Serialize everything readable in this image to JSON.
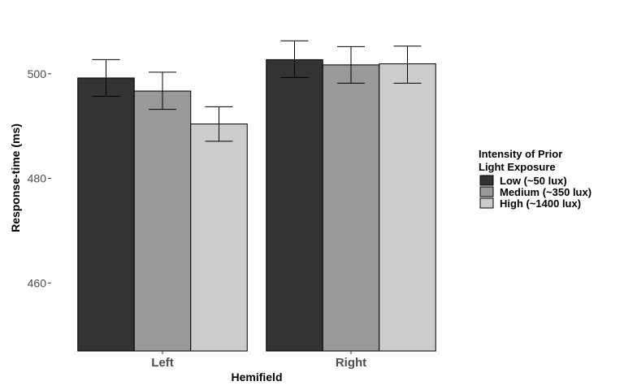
{
  "chart_data": {
    "type": "bar",
    "xlabel": "Hemifield",
    "ylabel": "Response-time (ms)",
    "categories": [
      "Left",
      "Right"
    ],
    "ylim": [
      447,
      511
    ],
    "yticks": [
      460,
      480,
      500
    ],
    "grid": false,
    "legend": {
      "title_lines": [
        "Intensity of Prior",
        "Light Exposure"
      ],
      "placement": "right"
    },
    "series": [
      {
        "name": "Low (~50 lux)",
        "color": "#333333",
        "values": [
          499.2,
          502.7
        ],
        "err_low": [
          495.7,
          499.3
        ],
        "err_high": [
          502.7,
          506.3
        ]
      },
      {
        "name": "Medium (~350 lux)",
        "color": "#999999",
        "values": [
          496.7,
          501.7
        ],
        "err_low": [
          493.2,
          498.2
        ],
        "err_high": [
          500.3,
          505.2
        ]
      },
      {
        "name": "High (~1400 lux)",
        "color": "#cccccc",
        "values": [
          490.4,
          501.9
        ],
        "err_low": [
          487.1,
          498.2
        ],
        "err_high": [
          493.7,
          505.3
        ]
      }
    ]
  }
}
